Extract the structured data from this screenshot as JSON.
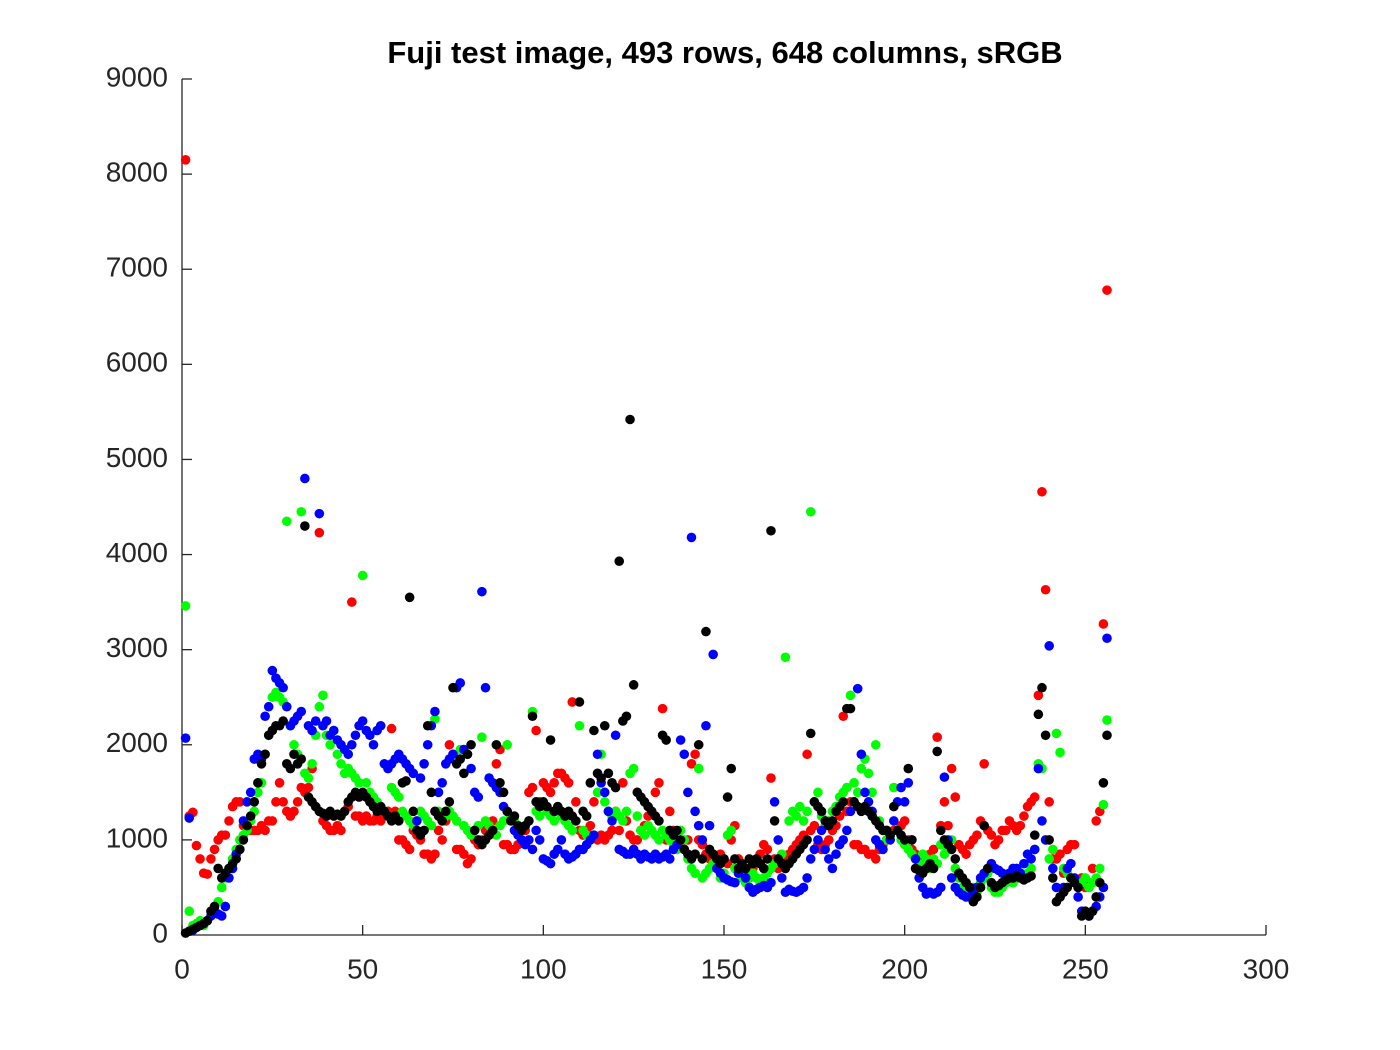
{
  "chart_data": {
    "type": "scatter",
    "title": "Fuji test image, 493 rows, 648 columns, sRGB",
    "x": [
      1,
      2,
      3,
      4,
      5,
      6,
      7,
      8,
      9,
      10,
      11,
      12,
      13,
      14,
      15,
      16,
      17,
      18,
      19,
      20,
      21,
      22,
      23,
      24,
      25,
      26,
      27,
      28,
      29,
      30,
      31,
      32,
      33,
      34,
      35,
      36,
      37,
      38,
      39,
      40,
      41,
      42,
      43,
      44,
      45,
      46,
      47,
      48,
      49,
      50,
      51,
      52,
      53,
      54,
      55,
      56,
      57,
      58,
      59,
      60,
      61,
      62,
      63,
      64,
      65,
      66,
      67,
      68,
      69,
      70,
      71,
      72,
      73,
      74,
      75,
      76,
      77,
      78,
      79,
      80,
      81,
      82,
      83,
      84,
      85,
      86,
      87,
      88,
      89,
      90,
      91,
      92,
      93,
      94,
      95,
      96,
      97,
      98,
      99,
      100,
      101,
      102,
      103,
      104,
      105,
      106,
      107,
      108,
      109,
      110,
      111,
      112,
      113,
      114,
      115,
      116,
      117,
      118,
      119,
      120,
      121,
      122,
      123,
      124,
      125,
      126,
      127,
      128,
      129,
      130,
      131,
      132,
      133,
      134,
      135,
      136,
      137,
      138,
      139,
      140,
      141,
      142,
      143,
      144,
      145,
      146,
      147,
      148,
      149,
      150,
      151,
      152,
      153,
      154,
      155,
      156,
      157,
      158,
      159,
      160,
      161,
      162,
      163,
      164,
      165,
      166,
      167,
      168,
      169,
      170,
      171,
      172,
      173,
      174,
      175,
      176,
      177,
      178,
      179,
      180,
      181,
      182,
      183,
      184,
      185,
      186,
      187,
      188,
      189,
      190,
      191,
      192,
      193,
      194,
      195,
      196,
      197,
      198,
      199,
      200,
      201,
      202,
      203,
      204,
      205,
      206,
      207,
      208,
      209,
      210,
      211,
      212,
      213,
      214,
      215,
      216,
      217,
      218,
      219,
      220,
      221,
      222,
      223,
      224,
      225,
      226,
      227,
      228,
      229,
      230,
      231,
      232,
      233,
      234,
      235,
      236,
      237,
      238,
      239,
      240,
      241,
      242,
      243,
      244,
      245,
      246,
      247,
      248,
      249,
      250,
      251,
      252,
      253,
      254,
      255,
      256
    ],
    "series": [
      {
        "color": "#ff0000",
        "values": [
          8150,
          1250,
          1290,
          940,
          800,
          650,
          640,
          800,
          900,
          1000,
          1050,
          1050,
          1200,
          1350,
          1400,
          1400,
          1150,
          1150,
          1100,
          1100,
          1100,
          1150,
          1100,
          1200,
          1200,
          1400,
          1600,
          1400,
          1300,
          1250,
          1300,
          1400,
          1550,
          1500,
          1550,
          1750,
          1350,
          4230,
          1200,
          1150,
          1100,
          1100,
          1150,
          1100,
          1300,
          1350,
          3500,
          1250,
          1250,
          1200,
          1250,
          1200,
          1200,
          1250,
          1200,
          1250,
          1300,
          2170,
          1300,
          1000,
          1000,
          950,
          900,
          1100,
          1050,
          1000,
          850,
          850,
          800,
          850,
          1100,
          1000,
          1200,
          2000,
          1900,
          900,
          900,
          850,
          750,
          800,
          1000,
          950,
          1000,
          1100,
          1050,
          1200,
          1800,
          1950,
          950,
          950,
          900,
          900,
          950,
          1000,
          1100,
          1500,
          1550,
          2150,
          1400,
          1600,
          1550,
          1500,
          1600,
          1700,
          1700,
          1650,
          1600,
          2450,
          1400,
          1100,
          1050,
          1100,
          1150,
          1400,
          1000,
          1050,
          1000,
          1050,
          1100,
          1300,
          1100,
          1600,
          1200,
          1050,
          1000,
          1000,
          1100,
          1150,
          1250,
          1300,
          1500,
          1600,
          2380,
          1000,
          1300,
          1100,
          1000,
          950,
          900,
          1000,
          1800,
          1900,
          1000,
          950,
          850,
          800,
          800,
          750,
          850,
          800,
          750,
          1000,
          1150,
          800,
          700,
          650,
          700,
          700,
          800,
          850,
          950,
          900,
          1650,
          800,
          700,
          750,
          800,
          850,
          900,
          950,
          1000,
          1050,
          1900,
          1100,
          1150,
          950,
          900,
          950,
          1000,
          1100,
          1150,
          1250,
          2300,
          1300,
          1400,
          950,
          950,
          900,
          900,
          850,
          850,
          800,
          900,
          950,
          1000,
          1050,
          1100,
          1100,
          1150,
          1200,
          1000,
          900,
          850,
          800,
          750,
          800,
          850,
          900,
          2080,
          1150,
          1400,
          1150,
          1750,
          1450,
          950,
          900,
          850,
          950,
          1000,
          1050,
          1200,
          1800,
          1100,
          1050,
          950,
          1000,
          1100,
          1100,
          1200,
          1150,
          1100,
          1150,
          1250,
          1350,
          1400,
          1450,
          2520,
          4660,
          3630,
          1400,
          800,
          800,
          850,
          650,
          900,
          950,
          950,
          550,
          600,
          500,
          550,
          700,
          1200,
          1300,
          3270,
          6780
        ]
      },
      {
        "color": "#00ff00",
        "values": [
          3460,
          250,
          100,
          120,
          150,
          100,
          150,
          200,
          300,
          350,
          500,
          600,
          700,
          800,
          900,
          1000,
          1050,
          1100,
          1200,
          1300,
          1500,
          1600,
          1900,
          2100,
          2500,
          2550,
          2500,
          2450,
          4350,
          2200,
          2000,
          1900,
          4450,
          1700,
          1650,
          1800,
          2100,
          2400,
          2520,
          2100,
          2000,
          2150,
          1900,
          1800,
          1700,
          1750,
          1700,
          1650,
          1600,
          3780,
          1600,
          1500,
          1450,
          1400,
          1350,
          1300,
          1250,
          1550,
          1500,
          1450,
          1300,
          1250,
          1200,
          1150,
          1200,
          1300,
          1250,
          1200,
          1150,
          2270,
          1300,
          1200,
          1250,
          1300,
          1250,
          1200,
          1950,
          1150,
          1100,
          1050,
          1100,
          1150,
          2080,
          1200,
          1150,
          1100,
          1050,
          1150,
          1200,
          2000,
          1250,
          1200,
          1150,
          1100,
          1150,
          1200,
          2350,
          1300,
          1250,
          1350,
          1300,
          1250,
          1200,
          1300,
          1250,
          1200,
          1150,
          1100,
          1200,
          2200,
          1100,
          1050,
          1000,
          1050,
          1500,
          1900,
          1400,
          1300,
          1250,
          1300,
          1250,
          1200,
          1300,
          1700,
          1750,
          1250,
          1100,
          1050,
          1150,
          1100,
          1050,
          1000,
          1100,
          1050,
          1000,
          950,
          900,
          1100,
          1000,
          800,
          700,
          650,
          1750,
          600,
          650,
          700,
          750,
          800,
          600,
          650,
          1050,
          1100,
          700,
          650,
          600,
          550,
          600,
          650,
          600,
          550,
          600,
          650,
          700,
          750,
          800,
          850,
          2920,
          1200,
          1300,
          1250,
          1350,
          1200,
          1300,
          4450,
          1400,
          1500,
          1250,
          1150,
          1200,
          1300,
          1350,
          1450,
          1500,
          1550,
          2520,
          1600,
          1500,
          1750,
          1850,
          1700,
          1500,
          2000,
          1200,
          1100,
          1000,
          1050,
          1550,
          1100,
          1000,
          950,
          900,
          850,
          800,
          750,
          850,
          800,
          700,
          800,
          750,
          950,
          850,
          900,
          1000,
          700,
          600,
          500,
          450,
          450,
          500,
          450,
          550,
          600,
          650,
          500,
          450,
          450,
          500,
          550,
          600,
          550,
          600,
          650,
          600,
          650,
          700,
          900,
          1800,
          1750,
          1000,
          800,
          900,
          2120,
          1920,
          700,
          650,
          600,
          550,
          500,
          550,
          600,
          500,
          550,
          600,
          700,
          1370,
          2260
        ]
      },
      {
        "color": "#0000ff",
        "values": [
          2070,
          1230,
          50,
          80,
          100,
          120,
          150,
          200,
          250,
          220,
          200,
          300,
          600,
          700,
          850,
          900,
          1200,
          1400,
          1500,
          1850,
          1900,
          1850,
          2300,
          2400,
          2780,
          2700,
          2650,
          2600,
          2400,
          2200,
          2250,
          2300,
          2350,
          4800,
          2200,
          2150,
          2250,
          4430,
          2200,
          2250,
          2100,
          2150,
          2050,
          2000,
          1950,
          1900,
          2000,
          2100,
          2200,
          2250,
          2150,
          2100,
          2000,
          2150,
          2200,
          1800,
          1750,
          1800,
          1850,
          1900,
          1850,
          1800,
          1750,
          1700,
          1200,
          1650,
          1800,
          2000,
          2200,
          2350,
          1500,
          1600,
          1800,
          1850,
          1900,
          2600,
          2650,
          1950,
          1900,
          1750,
          1500,
          1450,
          3610,
          2600,
          1650,
          1600,
          1550,
          1500,
          1350,
          1300,
          1200,
          1100,
          1050,
          1000,
          950,
          1000,
          900,
          1100,
          1000,
          800,
          780,
          750,
          850,
          900,
          1000,
          850,
          800,
          820,
          850,
          900,
          900,
          950,
          1000,
          1050,
          1900,
          1600,
          1500,
          1300,
          1200,
          2100,
          900,
          880,
          850,
          850,
          900,
          850,
          800,
          850,
          820,
          800,
          850,
          800,
          820,
          850,
          800,
          900,
          950,
          2050,
          1900,
          1500,
          4180,
          1300,
          1150,
          1000,
          2200,
          1150,
          2950,
          700,
          650,
          600,
          580,
          560,
          550,
          650,
          700,
          600,
          500,
          450,
          480,
          500,
          520,
          500,
          550,
          1400,
          1000,
          600,
          450,
          480,
          460,
          450,
          470,
          500,
          600,
          800,
          900,
          1000,
          1100,
          900,
          800,
          700,
          850,
          950,
          1000,
          1100,
          1300,
          1400,
          2590,
          1900,
          1500,
          1400,
          1300,
          1000,
          950,
          900,
          1100,
          1000,
          1200,
          1400,
          1550,
          1400,
          1600,
          1000,
          800,
          600,
          500,
          430,
          450,
          430,
          450,
          500,
          1660,
          1000,
          600,
          500,
          450,
          420,
          400,
          400,
          450,
          500,
          600,
          650,
          700,
          750,
          700,
          680,
          650,
          600,
          650,
          700,
          700,
          650,
          750,
          850,
          800,
          900,
          1750,
          1200,
          1000,
          3040,
          700,
          500,
          400,
          500,
          700,
          750,
          600,
          400,
          250,
          220,
          200,
          250,
          300,
          400,
          500,
          3120
        ]
      },
      {
        "color": "#000000",
        "values": [
          20,
          40,
          60,
          80,
          100,
          120,
          150,
          250,
          300,
          700,
          600,
          650,
          700,
          750,
          800,
          900,
          1000,
          1150,
          1250,
          1400,
          1600,
          1800,
          1900,
          2100,
          2150,
          2200,
          2200,
          2250,
          1800,
          1750,
          1900,
          1800,
          1850,
          4300,
          1450,
          1400,
          1350,
          1300,
          1280,
          1250,
          1300,
          1250,
          1270,
          1250,
          1300,
          1400,
          1450,
          1500,
          1450,
          1500,
          1450,
          1400,
          1350,
          1300,
          1350,
          1300,
          1250,
          1200,
          1250,
          1200,
          1600,
          1620,
          3550,
          1300,
          1100,
          1050,
          1100,
          2200,
          1500,
          1300,
          1250,
          1200,
          1300,
          1400,
          2600,
          1800,
          1850,
          1700,
          1900,
          2000,
          1100,
          1000,
          950,
          1000,
          1050,
          1100,
          2000,
          1600,
          1500,
          1300,
          1200,
          1250,
          1150,
          1100,
          1150,
          1200,
          2300,
          1400,
          1350,
          1400,
          1350,
          2050,
          1300,
          1350,
          1300,
          1250,
          1300,
          1250,
          1200,
          2450,
          1300,
          1250,
          1600,
          2150,
          1700,
          1650,
          2200,
          1700,
          1600,
          1550,
          3930,
          2250,
          2300,
          5420,
          2630,
          1500,
          1450,
          1400,
          1350,
          1300,
          1250,
          1200,
          2100,
          2050,
          1100,
          1050,
          1100,
          1000,
          900,
          850,
          800,
          850,
          2000,
          800,
          3190,
          900,
          850,
          800,
          750,
          800,
          1450,
          1750,
          800,
          700,
          750,
          700,
          800,
          750,
          800,
          750,
          700,
          800,
          4250,
          1200,
          800,
          750,
          700,
          750,
          800,
          850,
          900,
          950,
          1000,
          2120,
          1400,
          1350,
          1300,
          1200,
          1150,
          1200,
          1300,
          1350,
          1400,
          2380,
          2380,
          1400,
          1350,
          1300,
          1350,
          1300,
          1250,
          1200,
          1150,
          1100,
          1100,
          1050,
          1350,
          1100,
          1050,
          1000,
          1750,
          1000,
          700,
          680,
          650,
          700,
          750,
          700,
          1930,
          1100,
          1000,
          950,
          900,
          800,
          650,
          600,
          550,
          500,
          350,
          400,
          500,
          1150,
          700,
          550,
          500,
          520,
          550,
          580,
          600,
          600,
          620,
          600,
          580,
          600,
          620,
          1050,
          2320,
          2600,
          2100,
          1000,
          600,
          350,
          400,
          450,
          500,
          600,
          550,
          500,
          200,
          250,
          200,
          250,
          400,
          550,
          1600,
          2100
        ]
      }
    ],
    "xlim": [
      0,
      300
    ],
    "xticks": [
      0,
      50,
      100,
      150,
      200,
      250,
      300
    ],
    "ylim": [
      0,
      9000
    ],
    "yticks": [
      0,
      1000,
      2000,
      3000,
      4000,
      5000,
      6000,
      7000,
      8000,
      9000
    ]
  }
}
